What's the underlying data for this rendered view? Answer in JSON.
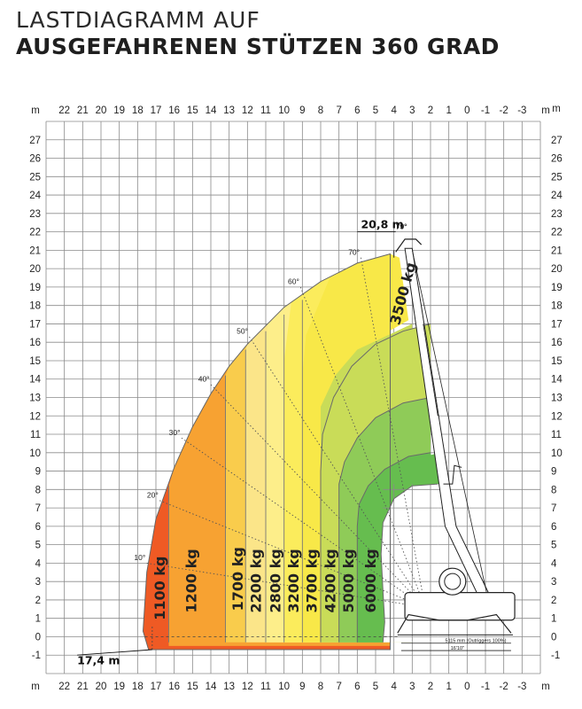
{
  "title": {
    "line1": "LASTDIAGRAMM AUF",
    "line2": "AUSGEFAHRENEN STÜTZEN 360 GRAD"
  },
  "chart_data": {
    "type": "area",
    "x_unit": "m",
    "y_unit": "m",
    "x_ticks": [
      22,
      21,
      20,
      19,
      18,
      17,
      16,
      15,
      14,
      13,
      12,
      11,
      10,
      9,
      8,
      7,
      6,
      5,
      4,
      3,
      2,
      1,
      0,
      -1,
      -2,
      -3
    ],
    "y_ticks": [
      -1,
      0,
      1,
      2,
      3,
      4,
      5,
      6,
      7,
      8,
      9,
      10,
      11,
      12,
      13,
      14,
      15,
      16,
      17,
      18,
      19,
      20,
      21,
      22,
      23,
      24,
      25,
      26,
      27
    ],
    "xlim": [
      23,
      -4
    ],
    "ylim": [
      -2,
      28
    ],
    "grid": true,
    "annotations": {
      "max_height": "20,8 m",
      "max_height_angle": "79°",
      "max_outreach": "17,4 m",
      "outrigger_span": "5115 mm (Outriggers 100%)",
      "outrigger_span_ft": "16'10\""
    },
    "boom_angles": [
      {
        "label": "10°",
        "x": 17.9,
        "y": 4.3
      },
      {
        "label": "20°",
        "x": 17.2,
        "y": 7.7
      },
      {
        "label": "30°",
        "x": 16.0,
        "y": 11.1
      },
      {
        "label": "40°",
        "x": 14.4,
        "y": 14.0
      },
      {
        "label": "50°",
        "x": 12.3,
        "y": 16.6
      },
      {
        "label": "60°",
        "x": 9.5,
        "y": 19.3
      },
      {
        "label": "70°",
        "x": 6.2,
        "y": 20.9
      }
    ],
    "zones": [
      {
        "label": "1100 kg",
        "color": "#ef5a24",
        "max_outreach": 17.4
      },
      {
        "label": "1200 kg",
        "color": "#f7a232",
        "max_outreach": 16.0
      },
      {
        "label": "1700 kg",
        "color": "#f9cc4c",
        "max_outreach": 13.0
      },
      {
        "label": "2200 kg",
        "color": "#fbe589",
        "max_outreach": 12.0
      },
      {
        "label": "2800 kg",
        "color": "#fdee8a",
        "max_outreach": 11.0
      },
      {
        "label": "3200 kg",
        "color": "#fbec5c",
        "max_outreach": 10.0
      },
      {
        "label": "3700 kg",
        "color": "#f8e848",
        "max_outreach": 9.0
      },
      {
        "label": "4200 kg",
        "color": "#c9dc58",
        "max_outreach": 8.0
      },
      {
        "label": "5000 kg",
        "color": "#8fcb58",
        "max_outreach": 7.0
      },
      {
        "label": "6000 kg",
        "color": "#66bd4f",
        "max_outreach": 6.0
      },
      {
        "label": "3500 kg",
        "color": "#f8e848",
        "max_outreach": 4.0
      }
    ]
  }
}
